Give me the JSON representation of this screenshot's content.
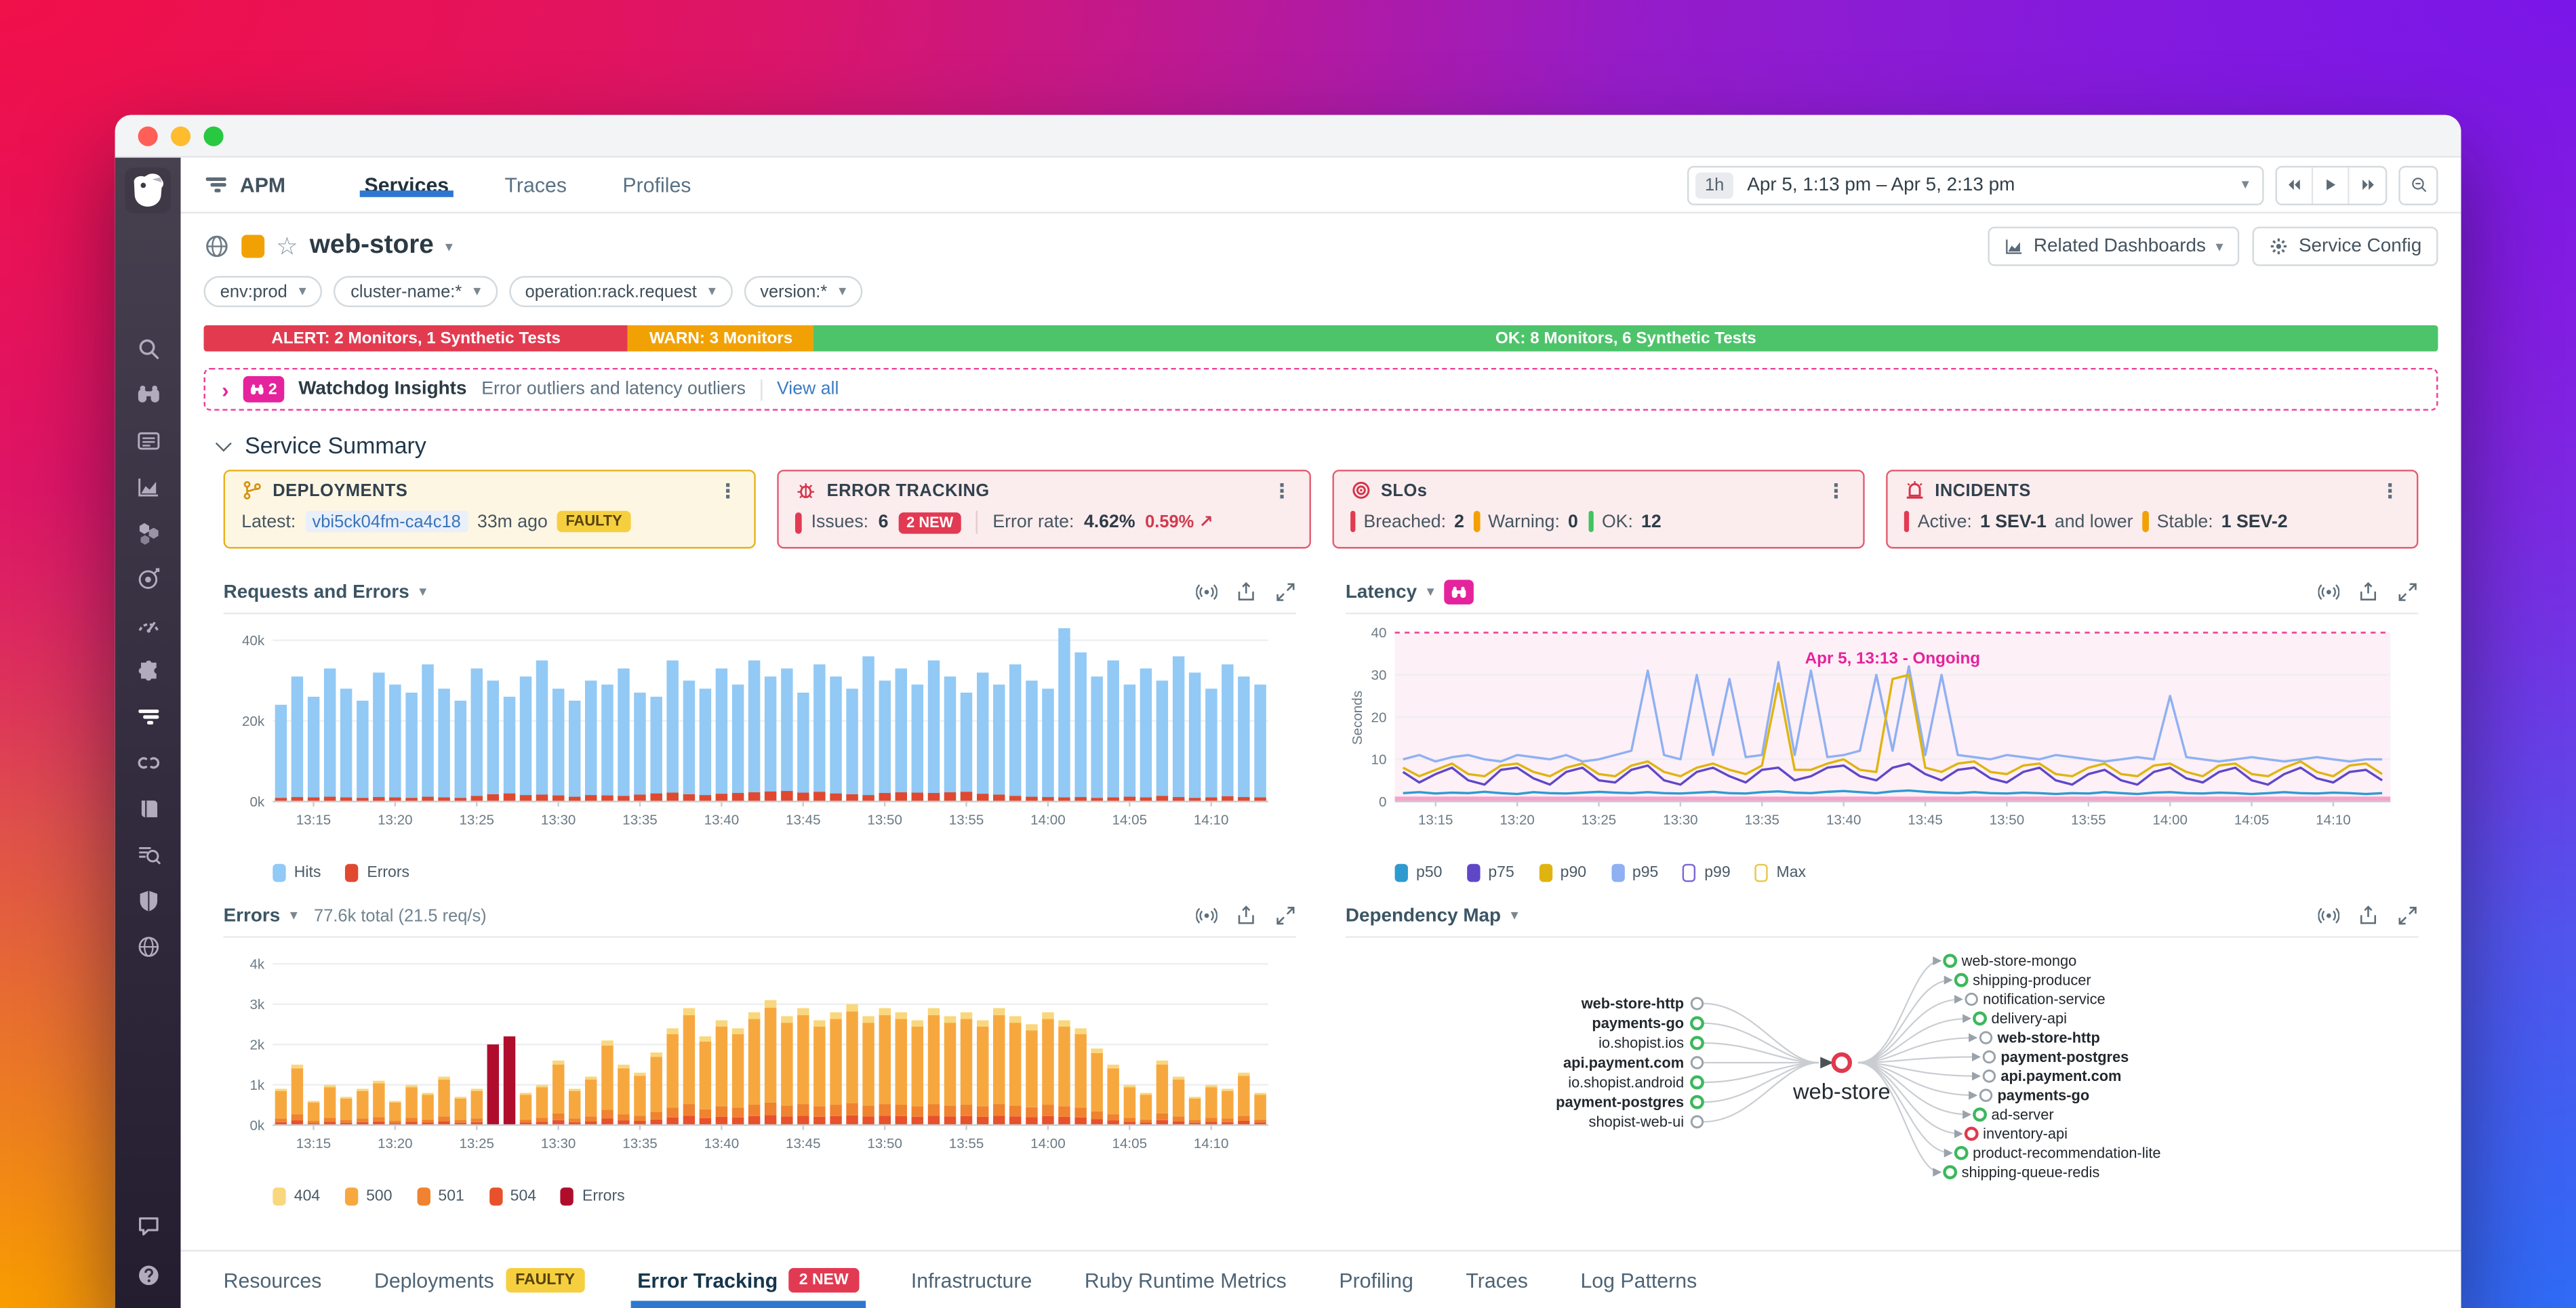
{
  "colors": {
    "accent_blue": "#2e77d0",
    "alert_red": "#e23b50",
    "warn_orange": "#f2a104",
    "ok_green": "#4dc46a",
    "watchdog_pink": "#e5239d",
    "faulty_yellow": "#f6cf40"
  },
  "glyphs": {
    "star": "☆",
    "kebab": "⋮",
    "caret": "▾",
    "chevron_right": "›",
    "trend_up": "↗"
  },
  "sidebar": {
    "items": [
      {
        "icon": "search"
      },
      {
        "icon": "watchdog"
      },
      {
        "icon": "events"
      },
      {
        "icon": "metrics"
      },
      {
        "icon": "infrastructure"
      },
      {
        "icon": "monitors"
      },
      {
        "icon": "synthetics"
      },
      {
        "icon": "integrations"
      },
      {
        "icon": "apm",
        "active": true
      },
      {
        "icon": "servicemap"
      },
      {
        "icon": "notebooks"
      },
      {
        "icon": "logs"
      },
      {
        "icon": "security"
      },
      {
        "icon": "network"
      }
    ],
    "bottom_items": [
      {
        "icon": "chat"
      },
      {
        "icon": "help"
      }
    ]
  },
  "topnav": {
    "app_label": "APM",
    "tabs": [
      {
        "label": "Services",
        "active": true
      },
      {
        "label": "Traces"
      },
      {
        "label": "Profiles"
      }
    ],
    "time": {
      "preset": "1h",
      "range": "Apr 5, 1:13 pm – Apr 5, 2:13 pm"
    }
  },
  "service_header": {
    "title": "web-store",
    "related_dashboards_label": "Related Dashboards",
    "service_config_label": "Service Config"
  },
  "filters": [
    {
      "label": "env:prod"
    },
    {
      "label": "cluster-name:*"
    },
    {
      "label": "operation:rack.request"
    },
    {
      "label": "version:*"
    }
  ],
  "status_bar": {
    "alert": "ALERT: 2 Monitors, 1 Synthetic Tests",
    "warn": "WARN: 3 Monitors",
    "ok": "OK: 8 Monitors, 6 Synthetic Tests"
  },
  "watchdog": {
    "count": "2",
    "title": "Watchdog Insights",
    "subtitle": "Error outliers and latency outliers",
    "link": "View all"
  },
  "summary": {
    "title": "Service Summary",
    "cards": {
      "deployments": {
        "title": "DEPLOYMENTS",
        "latest_label": "Latest:",
        "commit": "vbi5ck04fm-ca4c18",
        "age": "33m ago",
        "badge": "FAULTY"
      },
      "error_tracking": {
        "title": "ERROR TRACKING",
        "issues_label": "Issues:",
        "issues_value": "6",
        "new_badge": "2 NEW",
        "error_rate_label": "Error rate:",
        "error_rate_value": "4.62%",
        "delta": "0.59%"
      },
      "slos": {
        "title": "SLOs",
        "items": [
          {
            "label": "Breached:",
            "value": "2",
            "color": "#e23a52"
          },
          {
            "label": "Warning:",
            "value": "0",
            "color": "#f2a104"
          },
          {
            "label": "OK:",
            "value": "12",
            "color": "#3fc45f"
          }
        ]
      },
      "incidents": {
        "title": "INCIDENTS",
        "items": [
          {
            "label": "Active:",
            "value": "1 SEV-1",
            "suffix": " and lower",
            "color": "#e23a52"
          },
          {
            "label": "Stable:",
            "value": "1 SEV-2",
            "suffix": "",
            "color": "#f2a104"
          }
        ]
      }
    }
  },
  "charts": {
    "x_ticks": [
      "13:15",
      "13:20",
      "13:25",
      "13:30",
      "13:35",
      "13:40",
      "13:45",
      "13:50",
      "13:55",
      "14:00",
      "14:05",
      "14:10"
    ],
    "tick_idx": [
      2,
      7,
      12,
      17,
      22,
      27,
      32,
      37,
      42,
      47,
      52,
      57
    ],
    "requests": {
      "type": "bar",
      "title": "Requests and Errors",
      "y_max": 44,
      "y_tick_vals": [
        0,
        20,
        40
      ],
      "y_tick_labels": [
        "0k",
        "20k",
        "40k"
      ],
      "legend": [
        {
          "label": "Hits",
          "color": "#92c9f5"
        },
        {
          "label": "Errors",
          "color": "#e0492f"
        }
      ],
      "hits": [
        24,
        31,
        26,
        33,
        28,
        25,
        32,
        29,
        27,
        34,
        28,
        25,
        33,
        30,
        26,
        31,
        35,
        28,
        25,
        30,
        29,
        33,
        27,
        26,
        35,
        30,
        28,
        33,
        29,
        35,
        31,
        33,
        27,
        34,
        31,
        28,
        36,
        30,
        33,
        29,
        35,
        31,
        27,
        32,
        29,
        34,
        30,
        28,
        43,
        37,
        31,
        35,
        29,
        33,
        30,
        36,
        32,
        28,
        34,
        31,
        29
      ],
      "errors": [
        0.9,
        1.1,
        1.0,
        1.2,
        1.0,
        0.9,
        1.1,
        1.0,
        0.9,
        1.2,
        1.0,
        0.9,
        1.4,
        1.8,
        2.0,
        1.6,
        1.7,
        1.5,
        1.2,
        1.6,
        1.5,
        1.4,
        1.7,
        2.0,
        2.2,
        1.8,
        1.6,
        1.9,
        2.1,
        2.3,
        2.5,
        2.6,
        2.2,
        2.4,
        2.0,
        1.8,
        1.6,
        2.1,
        2.3,
        2.2,
        2.1,
        2.3,
        2.4,
        1.9,
        1.7,
        1.4,
        1.2,
        1.1,
        1.0,
        1.1,
        0.9,
        1.0,
        1.2,
        1.0,
        1.4,
        1.1,
        0.9,
        1.0,
        1.3,
        1.1,
        1.0
      ]
    },
    "latency": {
      "type": "line",
      "title": "Latency",
      "ylabel": "Seconds",
      "y_max": 42,
      "y_tick_vals": [
        0,
        10,
        20,
        30,
        40
      ],
      "threshold": 40,
      "annotation": "Apr 5, 13:13 - Ongoing",
      "legend": [
        {
          "label": "p50",
          "color": "#2f9ad0"
        },
        {
          "label": "p75",
          "color": "#6047c8"
        },
        {
          "label": "p90",
          "color": "#e0b410"
        },
        {
          "label": "p95",
          "color": "#8fb0f2"
        },
        {
          "label": "p99",
          "color": "#7d66d3",
          "outline": true
        },
        {
          "label": "Max",
          "color": "#e7c84b",
          "outline": true
        }
      ],
      "series": {
        "p95": [
          10,
          11,
          9.5,
          10.5,
          11,
          10,
          9.5,
          11,
          10.5,
          10,
          11,
          9.5,
          10,
          11,
          12,
          31,
          11,
          10,
          30,
          11,
          29,
          10.5,
          11,
          33,
          11,
          31,
          10.5,
          11,
          12,
          30,
          12,
          32,
          11,
          30,
          11,
          10.5,
          10,
          11,
          10.5,
          10,
          11,
          10.5,
          10,
          9.5,
          10,
          10.5,
          10,
          25,
          10.5,
          10,
          9.5,
          10,
          10.5,
          10,
          9.5,
          10,
          10.5,
          10,
          9.5,
          10,
          10
        ],
        "p90": [
          8,
          6,
          7.5,
          9,
          6.5,
          6,
          8.5,
          9,
          7,
          6,
          8,
          9,
          6.5,
          6,
          8.5,
          9.5,
          7,
          6,
          8,
          9,
          7.5,
          6.5,
          8.5,
          28,
          7.5,
          7.5,
          9,
          10,
          7.5,
          7,
          29,
          30,
          8,
          7,
          9,
          9.5,
          7,
          6.5,
          8.5,
          9,
          6.5,
          6,
          8,
          9,
          6.5,
          6,
          8.5,
          9,
          7,
          6,
          8.5,
          9,
          6.5,
          6,
          8,
          9.5,
          7,
          6,
          8.5,
          9,
          6.5
        ],
        "p75": [
          7,
          4.5,
          6.5,
          8,
          5,
          4,
          7.5,
          8,
          5.5,
          4,
          7,
          8,
          5,
          4.5,
          7.5,
          8.5,
          5,
          4,
          7,
          8,
          6,
          4.5,
          7.5,
          8,
          5,
          6,
          8,
          8.5,
          6,
          5,
          8,
          9,
          6.5,
          5,
          7.5,
          8,
          5.5,
          4.5,
          7,
          8,
          5,
          4,
          6.5,
          7.5,
          5,
          4,
          7,
          8,
          5.5,
          4.5,
          7,
          8,
          5,
          4,
          6.5,
          8,
          5.5,
          4.5,
          7,
          7.5,
          5
        ],
        "p50": [
          2,
          2.2,
          1.9,
          2.1,
          2,
          2.3,
          2,
          1.8,
          2.2,
          2,
          1.9,
          2.1,
          2.3,
          2.1,
          2,
          2.2,
          2,
          1.9,
          2.1,
          2.3,
          2,
          1.9,
          2.2,
          2.4,
          2.1,
          2,
          2.3,
          2.5,
          2.2,
          2,
          2.4,
          2.6,
          2.3,
          2.1,
          2,
          2.2,
          2,
          1.9,
          2.1,
          2,
          1.8,
          2,
          1.9,
          2.2,
          2,
          1.8,
          2.1,
          2.2,
          2,
          1.9,
          2.1,
          2,
          1.8,
          2,
          2.2,
          2,
          1.9,
          2.1,
          2,
          1.8,
          2
        ]
      }
    },
    "errors": {
      "type": "bar",
      "title": "Errors",
      "subtitle": "77.6k total (21.5 req/s)",
      "y_max": 4.4,
      "y_tick_vals": [
        0,
        1,
        2,
        3,
        4
      ],
      "y_tick_labels": [
        "0k",
        "1k",
        "2k",
        "3k",
        "4k"
      ],
      "legend": [
        {
          "label": "404",
          "color": "#f9d77d"
        },
        {
          "label": "500",
          "color": "#f6a83f"
        },
        {
          "label": "501",
          "color": "#ef832f"
        },
        {
          "label": "504",
          "color": "#e8512b"
        },
        {
          "label": "Errors",
          "color": "#b00d2d"
        }
      ],
      "stack": [
        {
          "key": "504",
          "color": "#e8512b",
          "frac": 0.08
        },
        {
          "key": "501",
          "color": "#ef832f",
          "frac": 0.1
        },
        {
          "key": "500",
          "color": "#f6a83f",
          "frac": 0.76
        },
        {
          "key": "404",
          "color": "#f9d77d",
          "frac": 0.06
        }
      ],
      "crimson_indexes": [
        13,
        14
      ],
      "crimson_color": "#b00d2d",
      "totals": [
        0.9,
        1.5,
        0.6,
        1.0,
        0.7,
        0.9,
        1.1,
        0.6,
        1.0,
        0.8,
        1.2,
        0.7,
        0.9,
        2.0,
        2.2,
        0.8,
        1.0,
        1.6,
        0.9,
        1.2,
        2.1,
        1.5,
        1.3,
        1.8,
        2.4,
        2.9,
        2.2,
        2.6,
        2.4,
        2.8,
        3.1,
        2.7,
        2.9,
        2.6,
        2.8,
        3.0,
        2.7,
        2.9,
        2.8,
        2.6,
        2.9,
        2.7,
        2.8,
        2.6,
        2.9,
        2.7,
        2.5,
        2.8,
        2.6,
        2.4,
        1.9,
        1.5,
        1.0,
        0.8,
        1.6,
        1.2,
        0.7,
        1.0,
        0.9,
        1.3,
        0.8
      ]
    },
    "dependency_map": {
      "title": "Dependency Map",
      "center": {
        "name": "web-store",
        "status": "red"
      },
      "upstream": [
        {
          "name": "web-store-http",
          "bold": true,
          "status": "gray"
        },
        {
          "name": "payments-go",
          "bold": true,
          "status": "green"
        },
        {
          "name": "io.shopist.ios",
          "bold": false,
          "status": "green"
        },
        {
          "name": "api.payment.com",
          "bold": true,
          "status": "gray"
        },
        {
          "name": "io.shopist.android",
          "bold": false,
          "status": "green"
        },
        {
          "name": "payment-postgres",
          "bold": true,
          "status": "green"
        },
        {
          "name": "shopist-web-ui",
          "bold": false,
          "status": "gray"
        }
      ],
      "downstream": [
        {
          "name": "web-store-mongo",
          "bold": false,
          "status": "green"
        },
        {
          "name": "shipping-producer",
          "bold": false,
          "status": "green"
        },
        {
          "name": "notification-service",
          "bold": false,
          "status": "gray"
        },
        {
          "name": "delivery-api",
          "bold": false,
          "status": "green"
        },
        {
          "name": "web-store-http",
          "bold": true,
          "status": "gray"
        },
        {
          "name": "payment-postgres",
          "bold": true,
          "status": "gray"
        },
        {
          "name": "api.payment.com",
          "bold": true,
          "status": "gray"
        },
        {
          "name": "payments-go",
          "bold": true,
          "status": "gray"
        },
        {
          "name": "ad-server",
          "bold": false,
          "status": "green"
        },
        {
          "name": "inventory-api",
          "bold": false,
          "status": "red"
        },
        {
          "name": "product-recommendation-lite",
          "bold": false,
          "status": "green"
        },
        {
          "name": "shipping-queue-redis",
          "bold": false,
          "status": "green"
        }
      ]
    }
  },
  "bottom_tabs": [
    {
      "label": "Resources"
    },
    {
      "label": "Deployments",
      "badge": "FAULTY",
      "badge_style": "faulty"
    },
    {
      "label": "Error Tracking",
      "badge": "2 NEW",
      "badge_style": "new",
      "active": true
    },
    {
      "label": "Infrastructure"
    },
    {
      "label": "Ruby Runtime Metrics"
    },
    {
      "label": "Profiling"
    },
    {
      "label": "Traces"
    },
    {
      "label": "Log Patterns"
    }
  ]
}
